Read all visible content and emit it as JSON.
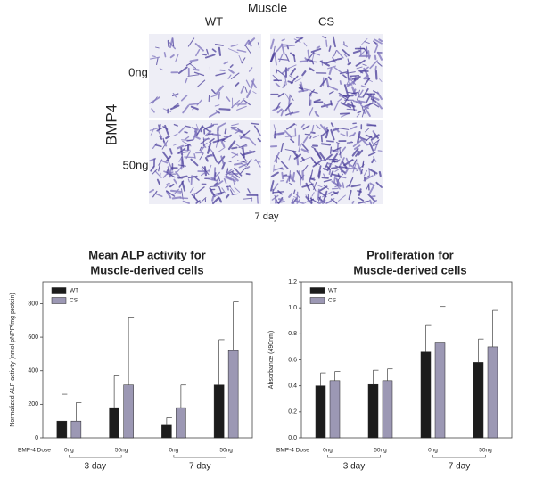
{
  "panel": {
    "title": "Muscle",
    "columns": [
      "WT",
      "CS"
    ],
    "row_axis": "BMP4",
    "rows": [
      "0ng",
      "50ng"
    ],
    "caption": "7 day"
  },
  "chart_data": [
    {
      "type": "bar",
      "title": [
        "Mean ALP activity for",
        "Muscle-derived cells"
      ],
      "ylabel": "Normalized ALP activity (nmol pNPP/mg protein)",
      "x_title": "BMP-4 Dose",
      "categories": [
        "0ng",
        "50ng",
        "0ng",
        "50ng"
      ],
      "group_labels": [
        "3 day",
        "7 day"
      ],
      "series": [
        {
          "name": "WT",
          "color": "#1c1c1c",
          "values": [
            100,
            180,
            75,
            315
          ],
          "errors": [
            160,
            190,
            45,
            270
          ]
        },
        {
          "name": "CS",
          "color": "#9c98b4",
          "values": [
            100,
            315,
            180,
            520
          ],
          "errors": [
            110,
            400,
            135,
            290
          ]
        }
      ],
      "ylim": [
        0,
        930
      ],
      "yticks": [
        0,
        200,
        400,
        600,
        800
      ],
      "legend": "upper-left"
    },
    {
      "type": "bar",
      "title": [
        "Proliferation for",
        "Muscle-derived cells"
      ],
      "ylabel": "Absorbance (490nm)",
      "x_title": "BMP-4 Dose",
      "categories": [
        "0ng",
        "50ng",
        "0ng",
        "50ng"
      ],
      "group_labels": [
        "3 day",
        "7 day"
      ],
      "series": [
        {
          "name": "WT",
          "color": "#1c1c1c",
          "values": [
            0.4,
            0.41,
            0.66,
            0.58
          ],
          "errors": [
            0.1,
            0.11,
            0.21,
            0.18
          ]
        },
        {
          "name": "CS",
          "color": "#9c98b4",
          "values": [
            0.44,
            0.44,
            0.73,
            0.7
          ],
          "errors": [
            0.07,
            0.09,
            0.28,
            0.28
          ]
        }
      ],
      "ylim": [
        0,
        1.2
      ],
      "yticks": [
        {
          "value": 0,
          "label": "0.0"
        },
        {
          "value": 0.2,
          "label": "0.2"
        },
        {
          "value": 0.4,
          "label": "0.4"
        },
        {
          "value": 0.6,
          "label": "0.6"
        },
        {
          "value": 0.8,
          "label": "0.8"
        },
        {
          "value": 1.0,
          "label": "1.0"
        },
        {
          "value": 1.2,
          "label": "1.2"
        }
      ],
      "legend": "upper-left"
    }
  ]
}
